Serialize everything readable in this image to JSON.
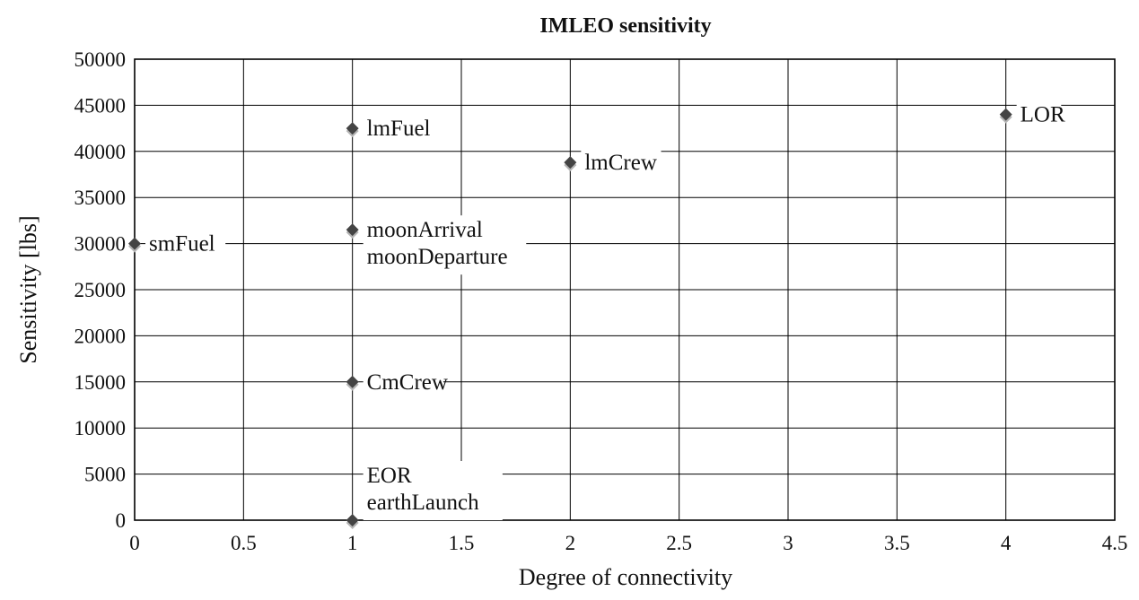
{
  "chart_data": {
    "type": "scatter",
    "title": "IMLEO sensitivity",
    "xlabel": "Degree of connectivity",
    "ylabel": "Sensitivity [lbs]",
    "xlim": [
      0,
      4.5
    ],
    "ylim": [
      0,
      50000
    ],
    "x_ticks": [
      "0",
      "0.5",
      "1",
      "1.5",
      "2",
      "2.5",
      "3",
      "3.5",
      "4",
      "4.5"
    ],
    "y_ticks": [
      "0",
      "5000",
      "10000",
      "15000",
      "20000",
      "25000",
      "30000",
      "35000",
      "40000",
      "45000",
      "50000"
    ],
    "grid": true,
    "marker": "diamond",
    "marker_color": "#444444",
    "shadow_color": "#b5b5b5",
    "points": [
      {
        "label": "lmFuel",
        "x": 1,
        "y": 42500
      },
      {
        "label": "LOR",
        "x": 4,
        "y": 44000
      },
      {
        "label": "lmCrew",
        "x": 2,
        "y": 38800
      },
      {
        "label": "smFuel",
        "x": 0,
        "y": 30000
      },
      {
        "label": "moonArrival",
        "x": 1,
        "y": 31500
      },
      {
        "label": "moonDeparture",
        "x": 1,
        "y": 31500
      },
      {
        "label": "CmCrew",
        "x": 1,
        "y": 15000
      },
      {
        "label": "EOR",
        "x": 1,
        "y": 0
      },
      {
        "label": "earthLaunch",
        "x": 1,
        "y": 0
      }
    ]
  }
}
